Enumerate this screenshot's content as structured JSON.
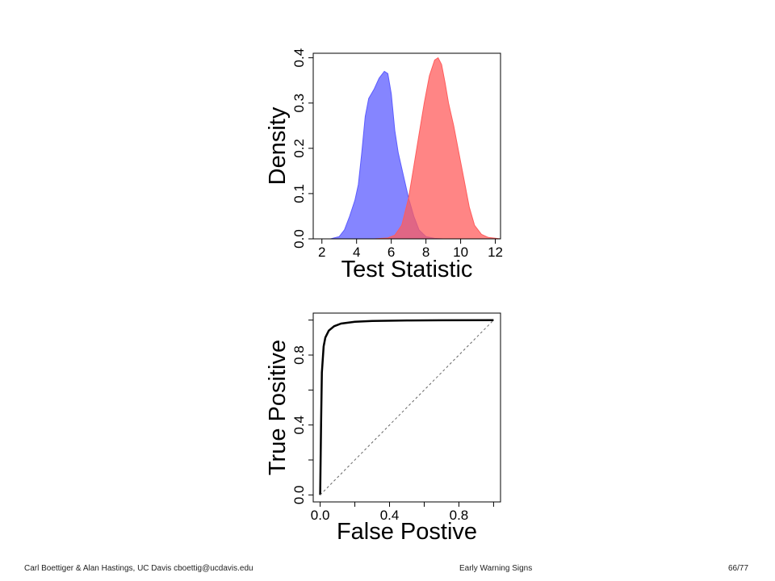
{
  "footer": {
    "left": "Carl Boettiger & Alan Hastings, UC Davis cboettig@ucdavis.edu",
    "center": "Early Warning Signs",
    "page": "66/77"
  },
  "chart_data": [
    {
      "type": "area",
      "xlabel": "Test Statistic",
      "ylabel": "Density",
      "xlim": [
        1.5,
        12.3
      ],
      "ylim": [
        0,
        0.41
      ],
      "xticks": [
        2,
        4,
        6,
        8,
        10,
        12
      ],
      "yticks": [
        0.0,
        0.1,
        0.2,
        0.3,
        0.4
      ],
      "xtick_labels": [
        "2",
        "4",
        "6",
        "8",
        "10",
        "12"
      ],
      "ytick_labels": [
        "0.0",
        "0.1",
        "0.2",
        "0.3",
        "0.4"
      ],
      "colors": {
        "blue": "#5c5cff",
        "red": "#ff5c5c"
      },
      "series": [
        {
          "color": "#5c5cff",
          "x": [
            1.5,
            2.5,
            3.0,
            3.3,
            3.6,
            3.9,
            4.1,
            4.3,
            4.5,
            4.7,
            5.0,
            5.3,
            5.6,
            5.8,
            6.0,
            6.2,
            6.4,
            6.7,
            7.0,
            7.3,
            7.6,
            8.0,
            8.5,
            9.0,
            10.0
          ],
          "y": [
            0.0,
            0.0,
            0.005,
            0.02,
            0.05,
            0.085,
            0.12,
            0.19,
            0.27,
            0.31,
            0.33,
            0.355,
            0.37,
            0.365,
            0.32,
            0.24,
            0.19,
            0.14,
            0.09,
            0.05,
            0.02,
            0.005,
            0.001,
            0.0,
            0.0
          ]
        },
        {
          "color": "#ff5c5c",
          "x": [
            5.0,
            5.8,
            6.2,
            6.6,
            7.0,
            7.3,
            7.6,
            7.9,
            8.2,
            8.5,
            8.7,
            8.9,
            9.1,
            9.3,
            9.6,
            9.9,
            10.2,
            10.5,
            10.8,
            11.2,
            11.6,
            12.3
          ],
          "y": [
            0.0,
            0.002,
            0.008,
            0.03,
            0.09,
            0.16,
            0.23,
            0.3,
            0.36,
            0.395,
            0.4,
            0.385,
            0.345,
            0.3,
            0.25,
            0.19,
            0.13,
            0.07,
            0.03,
            0.01,
            0.003,
            0.0
          ]
        }
      ]
    },
    {
      "type": "line",
      "xlabel": "False Postive",
      "ylabel": "True Positive",
      "xlim": [
        -0.04,
        1.04
      ],
      "ylim": [
        -0.04,
        1.04
      ],
      "xticks": [
        0.0,
        0.2,
        0.4,
        0.6,
        0.8,
        1.0
      ],
      "yticks": [
        0.0,
        0.2,
        0.4,
        0.6,
        0.8,
        1.0
      ],
      "xtick_labels": [
        "0.0",
        "",
        "0.4",
        "",
        "0.8",
        ""
      ],
      "ytick_labels": [
        "0.0",
        "",
        "0.4",
        "",
        "0.8",
        ""
      ],
      "series": [
        {
          "style": "solid",
          "x": [
            0.0,
            0.005,
            0.01,
            0.02,
            0.03,
            0.05,
            0.08,
            0.12,
            0.2,
            0.3,
            0.5,
            0.7,
            1.0
          ],
          "y": [
            0.0,
            0.4,
            0.7,
            0.85,
            0.9,
            0.94,
            0.965,
            0.98,
            0.99,
            0.995,
            0.998,
            0.999,
            1.0
          ]
        },
        {
          "style": "dashed",
          "x": [
            0.0,
            1.0
          ],
          "y": [
            0.0,
            1.0
          ]
        }
      ]
    }
  ]
}
